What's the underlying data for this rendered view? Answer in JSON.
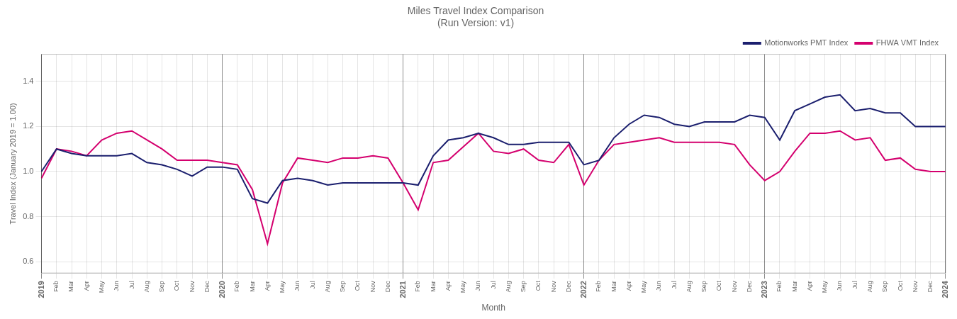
{
  "chart_data": {
    "type": "line",
    "title": "Miles Travel Index Comparison\n(Run Version: v1)",
    "x_label": "Month",
    "y_label": "Travel Index (January 2019 = 1.00)",
    "categories": [
      "2019",
      "Feb",
      "Mar",
      "Apr",
      "May",
      "Jun",
      "Jul",
      "Aug",
      "Sep",
      "Oct",
      "Nov",
      "Dec",
      "2020",
      "Feb",
      "Mar",
      "Apr",
      "May",
      "Jun",
      "Jul",
      "Aug",
      "Sep",
      "Oct",
      "Nov",
      "Dec",
      "2021",
      "Feb",
      "Mar",
      "Apr",
      "May",
      "Jun",
      "Jul",
      "Aug",
      "Sep",
      "Oct",
      "Nov",
      "Dec",
      "2022",
      "Feb",
      "Mar",
      "Apr",
      "May",
      "Jun",
      "Jul",
      "Aug",
      "Sep",
      "Oct",
      "Nov",
      "Dec",
      "2023",
      "Feb",
      "Mar",
      "Apr",
      "May",
      "Jun",
      "Jul",
      "Aug",
      "Sep",
      "Oct",
      "Nov",
      "Dec",
      "2024"
    ],
    "series": [
      {
        "name": "Motionworks PMT Index",
        "color": "#1b1f6e",
        "values": [
          1.0,
          1.1,
          1.08,
          1.07,
          1.07,
          1.07,
          1.08,
          1.04,
          1.03,
          1.01,
          0.98,
          1.02,
          1.02,
          1.01,
          0.88,
          0.86,
          0.96,
          0.97,
          0.96,
          0.94,
          0.95,
          0.95,
          0.95,
          0.95,
          0.95,
          0.94,
          1.07,
          1.14,
          1.15,
          1.17,
          1.15,
          1.12,
          1.12,
          1.13,
          1.13,
          1.13,
          1.03,
          1.05,
          1.15,
          1.21,
          1.25,
          1.24,
          1.21,
          1.2,
          1.22,
          1.22,
          1.22,
          1.25,
          1.24,
          1.14,
          1.27,
          1.3,
          1.33,
          1.34,
          1.27,
          1.28,
          1.26,
          1.26,
          1.2,
          1.2,
          1.2
        ]
      },
      {
        "name": "FHWA VMT Index",
        "color": "#d4006e",
        "values": [
          0.97,
          1.1,
          1.09,
          1.07,
          1.14,
          1.17,
          1.18,
          1.14,
          1.1,
          1.05,
          1.05,
          1.05,
          1.04,
          1.03,
          0.92,
          0.68,
          0.95,
          1.06,
          1.05,
          1.04,
          1.06,
          1.06,
          1.07,
          1.06,
          0.95,
          0.83,
          1.04,
          1.05,
          1.11,
          1.17,
          1.09,
          1.08,
          1.1,
          1.05,
          1.04,
          1.12,
          0.94,
          1.05,
          1.12,
          1.13,
          1.14,
          1.15,
          1.13,
          1.13,
          1.13,
          1.13,
          1.12,
          1.03,
          0.96,
          1.0,
          1.09,
          1.17,
          1.17,
          1.18,
          1.14,
          1.15,
          1.05,
          1.06,
          1.01,
          1.0,
          1.0
        ]
      }
    ],
    "ylim": [
      0.55,
      1.52
    ],
    "yticks": [
      0.6,
      0.8,
      {
        "value": 1.0,
        "label": "1.0"
      },
      1.2,
      1.4
    ],
    "grid": true,
    "legend": "upper right"
  }
}
